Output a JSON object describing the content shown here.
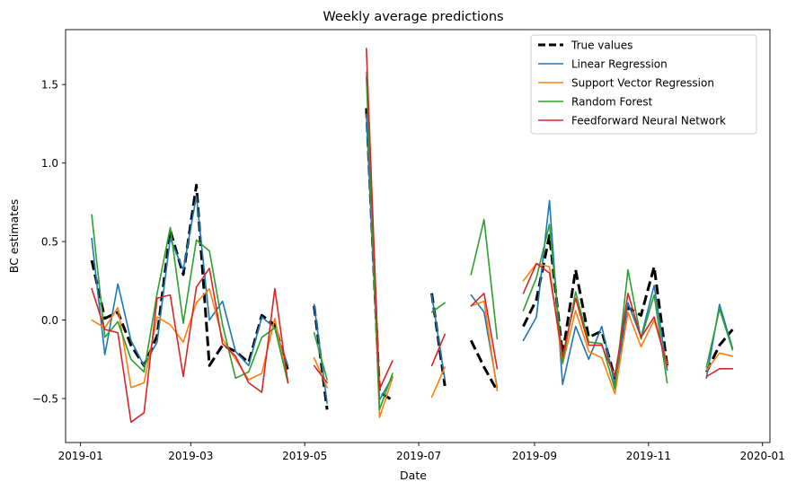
{
  "chart_data": {
    "type": "line",
    "title": "Weekly average predictions",
    "xlabel": "Date",
    "ylabel": "BC estimates",
    "xlim": [
      "2018-12-24",
      "2020-01-05"
    ],
    "ylim": [
      -0.78,
      1.85
    ],
    "x_ticks": [
      {
        "date": "2019-01-01",
        "label": "2019-01"
      },
      {
        "date": "2019-03-01",
        "label": "2019-03"
      },
      {
        "date": "2019-05-01",
        "label": "2019-05"
      },
      {
        "date": "2019-07-01",
        "label": "2019-07"
      },
      {
        "date": "2019-09-01",
        "label": "2019-09"
      },
      {
        "date": "2019-11-01",
        "label": "2019-11"
      },
      {
        "date": "2020-01-01",
        "label": "2020-01"
      }
    ],
    "y_ticks": [
      {
        "value": -0.5,
        "label": "−0.5"
      },
      {
        "value": 0.0,
        "label": "0.0"
      },
      {
        "value": 0.5,
        "label": "0.5"
      },
      {
        "value": 1.0,
        "label": "1.0"
      },
      {
        "value": 1.5,
        "label": "1.5"
      }
    ],
    "grid": false,
    "legend_position": "top-right",
    "series": [
      {
        "name": "True values",
        "color": "#000000",
        "dashed": true,
        "points": [
          [
            "2019-01-07",
            0.38
          ],
          [
            "2019-01-14",
            0.01
          ],
          [
            "2019-01-21",
            0.05
          ],
          [
            "2019-01-28",
            -0.16
          ],
          [
            "2019-02-04",
            -0.29
          ],
          [
            "2019-02-11",
            -0.1
          ],
          [
            "2019-02-18",
            0.57
          ],
          [
            "2019-02-25",
            0.29
          ],
          [
            "2019-03-04",
            0.86
          ],
          [
            "2019-03-11",
            -0.29
          ],
          [
            "2019-03-18",
            -0.16
          ],
          [
            "2019-03-25",
            -0.2
          ],
          [
            "2019-04-01",
            -0.27
          ],
          [
            "2019-04-08",
            0.03
          ],
          [
            "2019-04-15",
            -0.03
          ],
          [
            "2019-04-22",
            -0.32
          ],
          null,
          [
            "2019-05-06",
            0.09
          ],
          [
            "2019-05-13",
            -0.57
          ],
          null,
          [
            "2019-06-03",
            1.35
          ],
          [
            "2019-06-10",
            -0.46
          ],
          [
            "2019-06-17",
            -0.51
          ],
          null,
          [
            "2019-07-08",
            0.17
          ],
          [
            "2019-07-15",
            -0.42
          ],
          null,
          [
            "2019-07-29",
            -0.13
          ],
          [
            "2019-08-05",
            -0.3
          ],
          [
            "2019-08-12",
            -0.45
          ],
          null,
          [
            "2019-08-26",
            -0.04
          ],
          [
            "2019-09-02",
            0.13
          ],
          [
            "2019-09-09",
            0.54
          ],
          [
            "2019-09-16",
            -0.22
          ],
          [
            "2019-09-23",
            0.32
          ],
          [
            "2019-09-30",
            -0.11
          ],
          [
            "2019-10-07",
            -0.07
          ],
          [
            "2019-10-14",
            -0.37
          ],
          [
            "2019-10-21",
            0.08
          ],
          [
            "2019-10-28",
            0.03
          ],
          [
            "2019-11-04",
            0.34
          ],
          [
            "2019-11-11",
            -0.29
          ],
          null,
          [
            "2019-12-02",
            -0.33
          ],
          [
            "2019-12-09",
            -0.16
          ],
          [
            "2019-12-16",
            -0.06
          ]
        ]
      },
      {
        "name": "Linear Regression",
        "color": "#1f77b4",
        "dashed": false,
        "points": [
          [
            "2019-01-07",
            0.52
          ],
          [
            "2019-01-14",
            -0.22
          ],
          [
            "2019-01-21",
            0.23
          ],
          [
            "2019-01-28",
            -0.13
          ],
          [
            "2019-02-04",
            -0.29
          ],
          [
            "2019-02-11",
            -0.14
          ],
          [
            "2019-02-18",
            0.52
          ],
          [
            "2019-02-25",
            0.32
          ],
          [
            "2019-03-04",
            0.79
          ],
          [
            "2019-03-11",
            -0.0
          ],
          [
            "2019-03-18",
            0.12
          ],
          [
            "2019-03-25",
            -0.2
          ],
          [
            "2019-04-01",
            -0.29
          ],
          [
            "2019-04-08",
            0.02
          ],
          [
            "2019-04-15",
            -0.05
          ],
          [
            "2019-04-22",
            -0.29
          ],
          null,
          [
            "2019-05-06",
            0.1
          ],
          [
            "2019-05-13",
            -0.53
          ],
          null,
          [
            "2019-06-03",
            1.31
          ],
          [
            "2019-06-10",
            -0.51
          ],
          [
            "2019-06-17",
            -0.36
          ],
          null,
          [
            "2019-07-08",
            0.16
          ],
          [
            "2019-07-15",
            -0.38
          ],
          null,
          [
            "2019-07-29",
            0.16
          ],
          [
            "2019-08-05",
            0.05
          ],
          [
            "2019-08-12",
            -0.43
          ],
          null,
          [
            "2019-08-26",
            -0.13
          ],
          [
            "2019-09-02",
            0.02
          ],
          [
            "2019-09-09",
            0.76
          ],
          [
            "2019-09-16",
            -0.41
          ],
          [
            "2019-09-23",
            -0.04
          ],
          [
            "2019-09-30",
            -0.25
          ],
          [
            "2019-10-07",
            -0.04
          ],
          [
            "2019-10-14",
            -0.41
          ],
          [
            "2019-10-21",
            0.11
          ],
          [
            "2019-10-28",
            -0.11
          ],
          [
            "2019-11-04",
            0.22
          ],
          [
            "2019-11-11",
            -0.32
          ],
          null,
          [
            "2019-12-02",
            -0.37
          ],
          [
            "2019-12-09",
            0.1
          ],
          [
            "2019-12-16",
            -0.18
          ]
        ]
      },
      {
        "name": "Support Vector Regression",
        "color": "#ff7f0e",
        "dashed": false,
        "points": [
          [
            "2019-01-07",
            -0.0
          ],
          [
            "2019-01-14",
            -0.05
          ],
          [
            "2019-01-21",
            0.08
          ],
          [
            "2019-01-28",
            -0.43
          ],
          [
            "2019-02-04",
            -0.4
          ],
          [
            "2019-02-11",
            0.02
          ],
          [
            "2019-02-18",
            -0.03
          ],
          [
            "2019-02-25",
            -0.14
          ],
          [
            "2019-03-04",
            0.11
          ],
          [
            "2019-03-11",
            0.2
          ],
          [
            "2019-03-18",
            -0.12
          ],
          [
            "2019-03-25",
            -0.25
          ],
          [
            "2019-04-01",
            -0.38
          ],
          [
            "2019-04-08",
            -0.34
          ],
          [
            "2019-04-15",
            0.01
          ],
          [
            "2019-04-22",
            -0.4
          ],
          null,
          [
            "2019-05-06",
            -0.24
          ],
          [
            "2019-05-13",
            -0.43
          ],
          null,
          [
            "2019-06-03",
            1.58
          ],
          [
            "2019-06-10",
            -0.62
          ],
          [
            "2019-06-17",
            -0.37
          ],
          null,
          [
            "2019-07-08",
            -0.49
          ],
          [
            "2019-07-15",
            -0.3
          ],
          null,
          [
            "2019-07-29",
            0.09
          ],
          [
            "2019-08-05",
            0.12
          ],
          [
            "2019-08-12",
            -0.45
          ],
          null,
          [
            "2019-08-26",
            0.25
          ],
          [
            "2019-09-02",
            0.36
          ],
          [
            "2019-09-09",
            0.34
          ],
          [
            "2019-09-16",
            -0.28
          ],
          [
            "2019-09-23",
            0.06
          ],
          [
            "2019-09-30",
            -0.2
          ],
          [
            "2019-10-07",
            -0.24
          ],
          [
            "2019-10-14",
            -0.47
          ],
          [
            "2019-10-21",
            0.05
          ],
          [
            "2019-10-28",
            -0.17
          ],
          [
            "2019-11-04",
            0.0
          ],
          [
            "2019-11-11",
            -0.28
          ],
          null,
          [
            "2019-12-02",
            -0.32
          ],
          [
            "2019-12-09",
            -0.21
          ],
          [
            "2019-12-16",
            -0.23
          ]
        ]
      },
      {
        "name": "Random Forest",
        "color": "#2ca02c",
        "dashed": false,
        "points": [
          [
            "2019-01-07",
            0.67
          ],
          [
            "2019-01-14",
            -0.11
          ],
          [
            "2019-01-21",
            -0.01
          ],
          [
            "2019-01-28",
            -0.25
          ],
          [
            "2019-02-04",
            -0.33
          ],
          [
            "2019-02-11",
            0.17
          ],
          [
            "2019-02-18",
            0.59
          ],
          [
            "2019-02-25",
            -0.02
          ],
          [
            "2019-03-04",
            0.51
          ],
          [
            "2019-03-11",
            0.44
          ],
          [
            "2019-03-18",
            -0.03
          ],
          [
            "2019-03-25",
            -0.37
          ],
          [
            "2019-04-01",
            -0.33
          ],
          [
            "2019-04-08",
            -0.11
          ],
          [
            "2019-04-15",
            -0.05
          ],
          [
            "2019-04-22",
            -0.4
          ],
          null,
          [
            "2019-05-06",
            -0.08
          ],
          [
            "2019-05-13",
            -0.38
          ],
          null,
          [
            "2019-06-03",
            1.55
          ],
          [
            "2019-06-10",
            -0.57
          ],
          [
            "2019-06-17",
            -0.34
          ],
          null,
          [
            "2019-07-08",
            0.05
          ],
          [
            "2019-07-15",
            0.11
          ],
          null,
          [
            "2019-07-29",
            0.29
          ],
          [
            "2019-08-05",
            0.64
          ],
          [
            "2019-08-12",
            -0.12
          ],
          null,
          [
            "2019-08-26",
            0.06
          ],
          [
            "2019-09-02",
            0.27
          ],
          [
            "2019-09-09",
            0.61
          ],
          [
            "2019-09-16",
            -0.27
          ],
          [
            "2019-09-23",
            0.18
          ],
          [
            "2019-09-30",
            -0.14
          ],
          [
            "2019-10-07",
            -0.15
          ],
          [
            "2019-10-14",
            -0.44
          ],
          [
            "2019-10-21",
            0.32
          ],
          [
            "2019-10-28",
            -0.12
          ],
          [
            "2019-11-04",
            0.16
          ],
          [
            "2019-11-11",
            -0.4
          ],
          null,
          [
            "2019-12-02",
            -0.3
          ],
          [
            "2019-12-09",
            0.07
          ],
          [
            "2019-12-16",
            -0.19
          ]
        ]
      },
      {
        "name": "Feedforward Neural Network",
        "color": "#d62728",
        "dashed": false,
        "points": [
          [
            "2019-01-07",
            0.2
          ],
          [
            "2019-01-14",
            -0.06
          ],
          [
            "2019-01-21",
            -0.08
          ],
          [
            "2019-01-28",
            -0.65
          ],
          [
            "2019-02-04",
            -0.59
          ],
          [
            "2019-02-11",
            0.14
          ],
          [
            "2019-02-18",
            0.16
          ],
          [
            "2019-02-25",
            -0.36
          ],
          [
            "2019-03-04",
            0.21
          ],
          [
            "2019-03-11",
            0.33
          ],
          [
            "2019-03-18",
            -0.15
          ],
          [
            "2019-03-25",
            -0.23
          ],
          [
            "2019-04-01",
            -0.4
          ],
          [
            "2019-04-08",
            -0.46
          ],
          [
            "2019-04-15",
            0.2
          ],
          [
            "2019-04-22",
            -0.4
          ],
          null,
          [
            "2019-05-06",
            -0.29
          ],
          [
            "2019-05-13",
            -0.4
          ],
          null,
          [
            "2019-06-03",
            1.73
          ],
          [
            "2019-06-10",
            -0.44
          ],
          [
            "2019-06-17",
            -0.26
          ],
          null,
          [
            "2019-07-08",
            -0.29
          ],
          [
            "2019-07-15",
            -0.09
          ],
          null,
          [
            "2019-07-29",
            0.09
          ],
          [
            "2019-08-05",
            0.17
          ],
          [
            "2019-08-12",
            -0.31
          ],
          null,
          [
            "2019-08-26",
            0.17
          ],
          [
            "2019-09-02",
            0.36
          ],
          [
            "2019-09-09",
            0.3
          ],
          [
            "2019-09-16",
            -0.23
          ],
          [
            "2019-09-23",
            0.14
          ],
          [
            "2019-09-30",
            -0.16
          ],
          [
            "2019-10-07",
            -0.16
          ],
          [
            "2019-10-14",
            -0.36
          ],
          [
            "2019-10-21",
            0.17
          ],
          [
            "2019-10-28",
            -0.11
          ],
          [
            "2019-11-04",
            0.02
          ],
          [
            "2019-11-11",
            -0.3
          ],
          null,
          [
            "2019-12-02",
            -0.36
          ],
          [
            "2019-12-09",
            -0.31
          ],
          [
            "2019-12-16",
            -0.31
          ]
        ]
      }
    ]
  }
}
